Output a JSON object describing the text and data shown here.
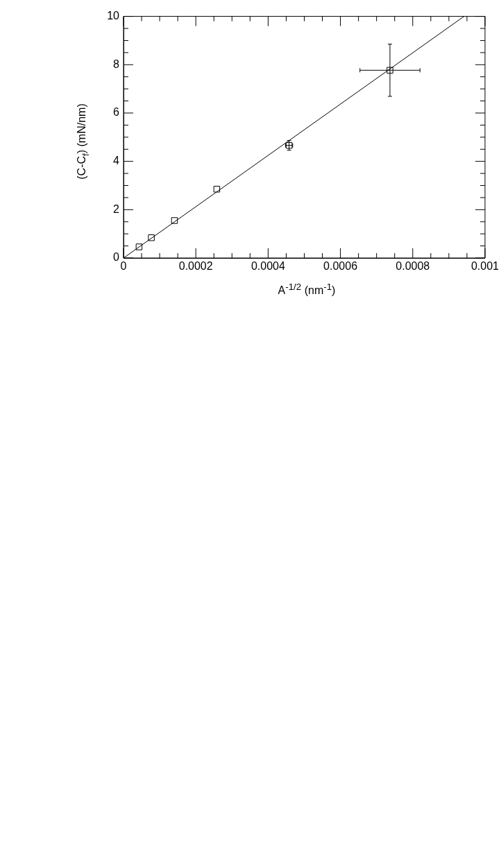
{
  "chart_data": {
    "type": "scatter",
    "xlabel": "A$^{-1/2}$ (nm$^{-1}$)",
    "ylabel": "(C-C$_{f}$) (mN/nm)",
    "xlim": [
      0,
      0.001
    ],
    "ylim": [
      0,
      10
    ],
    "xticks": [
      0,
      {
        "value": 5e-05,
        "label": null
      },
      {
        "value": 0.0001,
        "label": null
      },
      {
        "value": 0.00015,
        "label": null
      },
      0.0002,
      {
        "value": 0.00025,
        "label": null
      },
      {
        "value": 0.0003,
        "label": null
      },
      {
        "value": 0.00035,
        "label": null
      },
      0.0004,
      {
        "value": 0.00045,
        "label": null
      },
      {
        "value": 0.0005,
        "label": null
      },
      {
        "value": 0.00055,
        "label": null
      },
      0.0006,
      {
        "value": 0.00065,
        "label": null
      },
      {
        "value": 0.0007,
        "label": null
      },
      {
        "value": 0.00075,
        "label": null
      },
      0.0008,
      {
        "value": 0.00085,
        "label": null
      },
      {
        "value": 0.0009,
        "label": null
      },
      {
        "value": 0.00095,
        "label": null
      },
      0.001
    ],
    "yticks": [
      0,
      {
        "value": 0.5,
        "label": null
      },
      {
        "value": 1,
        "label": null
      },
      {
        "value": 1.5,
        "label": null
      },
      2,
      {
        "value": 2.5,
        "label": null
      },
      {
        "value": 3,
        "label": null
      },
      {
        "value": 3.5,
        "label": null
      },
      4,
      {
        "value": 4.5,
        "label": null
      },
      {
        "value": 5,
        "label": null
      },
      {
        "value": 5.5,
        "label": null
      },
      6,
      {
        "value": 6.5,
        "label": null
      },
      {
        "value": 7,
        "label": null
      },
      {
        "value": 7.5,
        "label": null
      },
      8,
      {
        "value": 8.5,
        "label": null
      },
      {
        "value": 9,
        "label": null
      },
      {
        "value": 9.5,
        "label": null
      },
      10
    ],
    "grid": false,
    "legend": false,
    "marker": "square",
    "series": [
      {
        "color": "#000000",
        "x": [
          4.3e-05,
          7.7e-05,
          0.000141,
          0.000258,
          0.000458,
          0.000737
        ],
        "values": [
          0.46,
          0.84,
          1.55,
          2.85,
          4.66,
          7.77
        ],
        "errors": [
          null,
          null,
          null,
          null,
          0.2,
          1.08
        ],
        "xerrors": [
          null,
          null,
          null,
          null,
          1e-05,
          8.3e-05
        ]
      },
      {
        "type": "line",
        "color": "#000000",
        "x": [
          0,
          0.000942
        ],
        "values": [
          0,
          10
        ],
        "marker": "none",
        "line_style": "solid"
      }
    ]
  }
}
